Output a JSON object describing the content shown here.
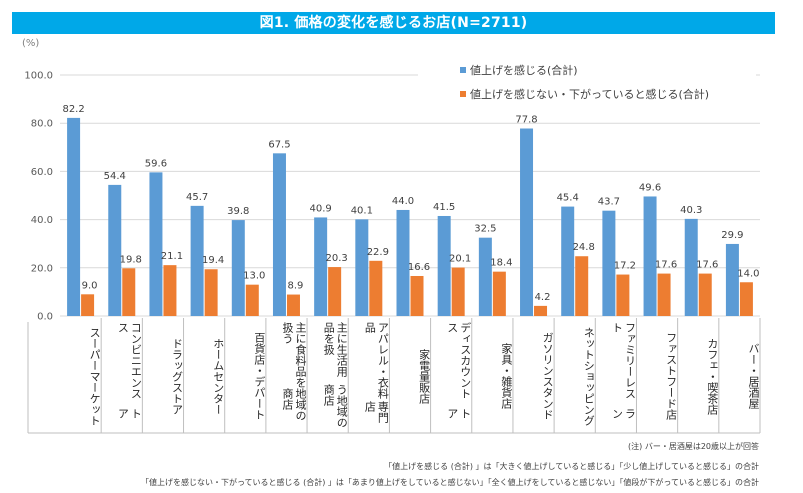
{
  "title": "図1. 価格の変化を感じるお店(N=2711)",
  "unit_label": "(%)",
  "colors": {
    "title_bar": "#00a8e8",
    "series_up": "#5b9bd5",
    "series_down": "#ed7d31",
    "grid": "#d9d9d9"
  },
  "chart_data": {
    "type": "bar",
    "title": "図1. 価格の変化を感じるお店(N=2711)",
    "xlabel": "",
    "ylabel": "(%)",
    "ylim": [
      0,
      100
    ],
    "yticks": [
      "0.0",
      "20.0",
      "40.0",
      "60.0",
      "80.0",
      "100.0"
    ],
    "ytick_values": [
      0,
      20,
      40,
      60,
      80,
      100
    ],
    "grid": true,
    "legend_position": "top-right",
    "categories": [
      "スーパーマーケット",
      "コンビニエンスストア",
      "ドラッグストア",
      "ホームセンター",
      "百貨店・デパート",
      "主に食料品を扱う地域の商店",
      "主に生活用品を扱う地域の商店",
      "アパレル・衣料品専門店",
      "家電量販店",
      "ディスカウントストア",
      "家具・雑貨店",
      "ガソリンスタンド",
      "ネットショッピング",
      "ファミリーレストラン",
      "ファストフード店",
      "カフェ・喫茶店",
      "バー・居酒屋"
    ],
    "category_display_lines": [
      [
        "スーパーマーケッ",
        "ト"
      ],
      [
        "コンビニエンスス",
        "トア"
      ],
      [
        "ドラッグストア"
      ],
      [
        "ホームセンター"
      ],
      [
        "百貨店・デパート"
      ],
      [
        "主に食料品を扱う",
        "地域の商店"
      ],
      [
        "主に生活用品を扱",
        "う地域の商店"
      ],
      [
        "アパレル・衣料品",
        "専門店"
      ],
      [
        "家電量販店"
      ],
      [
        "ディスカウントス",
        "トア"
      ],
      [
        "家具・雑貨店"
      ],
      [
        "ガソリンスタンド"
      ],
      [
        "ネット",
        "ショッピング"
      ],
      [
        "ファミリーレスト",
        "ラン"
      ],
      [
        "ファストフード店"
      ],
      [
        "カフェ・喫茶店"
      ],
      [
        "バー・居酒屋"
      ]
    ],
    "series": [
      {
        "name": "値上げを感じる(合計)",
        "color": "#5b9bd5",
        "values": [
          82.2,
          54.4,
          59.6,
          45.7,
          39.8,
          67.5,
          40.9,
          40.1,
          44.0,
          41.5,
          32.5,
          77.8,
          45.4,
          43.7,
          49.6,
          40.3,
          29.9
        ],
        "labels": [
          "82.2",
          "54.4",
          "59.6",
          "45.7",
          "39.8",
          "67.5",
          "40.9",
          "40.1",
          "44.0",
          "41.5",
          "32.5",
          "77.8",
          "45.4",
          "43.7",
          "49.6",
          "40.3",
          "29.9"
        ]
      },
      {
        "name": "値上げを感じない・下がっていると感じる(合計)",
        "color": "#ed7d31",
        "values": [
          9.0,
          19.8,
          21.1,
          19.4,
          13.0,
          8.9,
          20.3,
          22.9,
          16.6,
          20.1,
          18.4,
          4.2,
          24.8,
          17.2,
          17.6,
          17.6,
          14.0
        ],
        "labels": [
          "9.0",
          "19.8",
          "21.1",
          "19.4",
          "13.0",
          "8.9",
          "20.3",
          "22.9",
          "16.6",
          "20.1",
          "18.4",
          "4.2",
          "24.8",
          "17.2",
          "17.6",
          "17.6",
          "14.0"
        ]
      }
    ]
  },
  "notes": [
    "(注) バー・居酒屋は20歳以上が回答",
    "「値上げを感じる (合計) 」は「大きく値上げしていると感じる」「少し値上げしていると感じる」の合計",
    "「値上げを感じない・下がっていると感じる (合計) 」は「あまり値上げをしていると感じない」「全く値上げをしていると感じない」「値段が下がっていると感じる」の合計"
  ]
}
